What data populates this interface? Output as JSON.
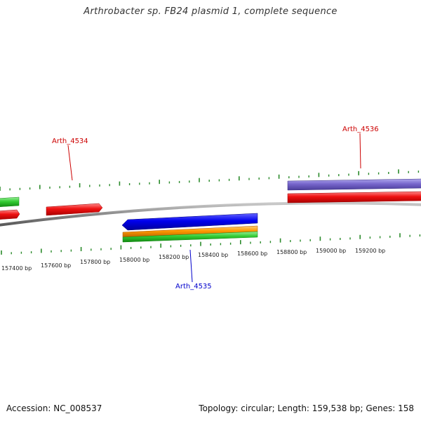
{
  "title": "Arthrobacter sp. FB24 plasmid 1, complete sequence",
  "footer": {
    "accession": "Accession: NC_008537",
    "summary": "Topology: circular; Length: 159,538 bp; Genes: 158"
  },
  "colors": {
    "backbone": "#888888",
    "ticks": "#2a8a2a",
    "forward_label": "#cc0000",
    "reverse_label": "#0000cc"
  },
  "scale": {
    "labels": [
      "157400 bp",
      "157600 bp",
      "157800 bp",
      "158000 bp",
      "158200 bp",
      "158400 bp",
      "158600 bp",
      "158800 bp",
      "159000 bp",
      "159200 bp"
    ]
  },
  "genes": [
    {
      "id": "left-green",
      "color": "#33cc33"
    },
    {
      "id": "left-red",
      "color": "#ee1111"
    },
    {
      "id": "Arth_4534",
      "label": "Arth_4534",
      "color": "#ee1111",
      "label_color": "#cc0000"
    },
    {
      "id": "Arth_4535",
      "label": "Arth_4535",
      "color": "#0000ee",
      "label_color": "#0000cc"
    },
    {
      "id": "Arth_4535-orange",
      "color": "#ff9900"
    },
    {
      "id": "Arth_4535-green",
      "color": "#33cc33"
    },
    {
      "id": "Arth_4536",
      "label": "Arth_4536",
      "color": "#7766cc",
      "label_color": "#cc0000"
    },
    {
      "id": "Arth_4536-red",
      "color": "#ee1111"
    }
  ]
}
